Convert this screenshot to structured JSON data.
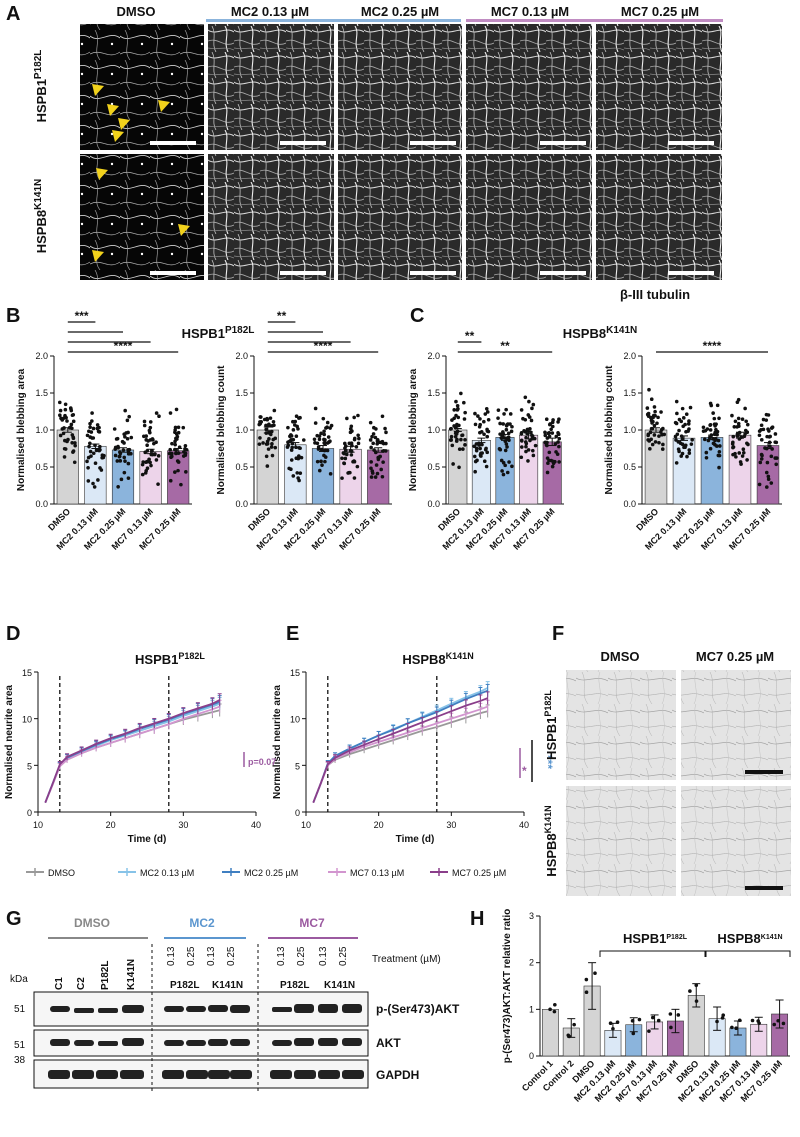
{
  "panel_letters": {
    "A": "A",
    "B": "B",
    "C": "C",
    "D": "D",
    "E": "E",
    "F": "F",
    "G": "G",
    "H": "H"
  },
  "colors": {
    "DMSO": "#d4d4d4",
    "MC2_013": "#dbe8f6",
    "MC2_025": "#8bb4dc",
    "MC7_013": "#edd4ea",
    "MC7_025": "#a66aa5",
    "line_DMSO": "#999999",
    "line_MC2_013": "#87c3e8",
    "line_MC2_025": "#3f7fc1",
    "line_MC7_013": "#d295cf",
    "line_MC7_025": "#8a3e8a",
    "mc2_text": "#5b96cf",
    "mc7_text": "#9b5aa0"
  },
  "panelA": {
    "headers": [
      "DMSO",
      "MC2 0.13 µM",
      "MC2 0.25 µM",
      "MC7 0.13 µM",
      "MC7 0.25 µM"
    ],
    "rows": [
      "HSPB1",
      "HSPB8"
    ],
    "row_sup": [
      "P182L",
      "K141N"
    ],
    "stain": "β-III tubulin"
  },
  "panelB": {
    "title": "HSPB1",
    "title_sup": "P182L"
  },
  "panelC": {
    "title": "HSPB8",
    "title_sup": "K141N"
  },
  "bar_categories": [
    "DMSO",
    "MC2 0.13 µM",
    "MC2 0.25 µM",
    "MC7 0.13 µM",
    "MC7 0.25 µM"
  ],
  "panelD": {
    "title": "HSPB1",
    "title_sup": "P182L",
    "pval": "p=0.07"
  },
  "panelE": {
    "title": "HSPB8",
    "title_sup": "K141N",
    "sig1": "*",
    "sig2": "***"
  },
  "panelF": {
    "headers": [
      "DMSO",
      "MC7 0.25 µM"
    ],
    "rows": [
      "HSPB1",
      "HSPB8"
    ],
    "row_sup": [
      "P182L",
      "K141N"
    ]
  },
  "legend": [
    "DMSO",
    "MC2 0.13 µM",
    "MC2 0.25 µM",
    "MC7 0.13 µM",
    "MC7 0.25 µM"
  ],
  "panelG": {
    "groups": [
      "DMSO",
      "MC2",
      "MC7"
    ],
    "lanes_dmso": [
      "C1",
      "C2",
      "P182L",
      "K141N"
    ],
    "conc": [
      "0.13",
      "0.25",
      "0.13",
      "0.25"
    ],
    "mut": [
      "P182L",
      "K141N"
    ],
    "treatment": "Treatment (µM)",
    "kda": "kDa",
    "markers": [
      "51",
      "51",
      "38"
    ],
    "blots": [
      "p-(Ser473)AKT",
      "AKT",
      "GAPDH"
    ]
  },
  "panelH": {
    "groups": [
      "HSPB1",
      "HSPB8"
    ],
    "group_sup": [
      "P182L",
      "K141N"
    ]
  },
  "chart_data": [
    {
      "id": "B1",
      "type": "bar",
      "ylabel": "Normalised blebbing area",
      "ylim": [
        0,
        2.0
      ],
      "yticks": [
        "0.0",
        "0.5",
        "1.0",
        "1.5",
        "2.0"
      ],
      "categories": [
        "DMSO",
        "MC2 0.13 µM",
        "MC2 0.25 µM",
        "MC7 0.13 µM",
        "MC7 0.25 µM"
      ],
      "values": [
        1.0,
        0.78,
        0.73,
        0.71,
        0.72
      ],
      "errors": [
        0.03,
        0.03,
        0.03,
        0.03,
        0.03
      ],
      "sig": [
        {
          "to": 1,
          "label": "***"
        },
        {
          "to": 2,
          "label": ""
        },
        {
          "to": 3,
          "label": ""
        },
        {
          "to": 4,
          "label": "****"
        }
      ]
    },
    {
      "id": "B2",
      "type": "bar",
      "ylabel": "Normalised blebbing count",
      "ylim": [
        0,
        2.0
      ],
      "yticks": [
        "0.0",
        "0.5",
        "1.0",
        "1.5",
        "2.0"
      ],
      "categories": [
        "DMSO",
        "MC2 0.13 µM",
        "MC2 0.25 µM",
        "MC7 0.13 µM",
        "MC7 0.25 µM"
      ],
      "values": [
        1.0,
        0.8,
        0.75,
        0.74,
        0.73
      ],
      "errors": [
        0.04,
        0.03,
        0.04,
        0.04,
        0.03
      ],
      "sig": [
        {
          "to": 1,
          "label": "**"
        },
        {
          "to": 2,
          "label": ""
        },
        {
          "to": 3,
          "label": ""
        },
        {
          "to": 4,
          "label": "****"
        }
      ]
    },
    {
      "id": "C1",
      "type": "bar",
      "ylabel": "Normalised blebbing area",
      "ylim": [
        0,
        2.0
      ],
      "yticks": [
        "0.0",
        "0.5",
        "1.0",
        "1.5",
        "2.0"
      ],
      "categories": [
        "DMSO",
        "MC2 0.13 µM",
        "MC2 0.25 µM",
        "MC7 0.13 µM",
        "MC7 0.25 µM"
      ],
      "values": [
        1.0,
        0.86,
        0.9,
        0.93,
        0.84
      ],
      "errors": [
        0.02,
        0.03,
        0.04,
        0.05,
        0.05
      ],
      "sig": [
        {
          "to": 1,
          "label": "**"
        },
        {
          "to": 4,
          "label": "**"
        }
      ]
    },
    {
      "id": "C2",
      "type": "bar",
      "ylabel": "Normalised blebbing count",
      "ylim": [
        0,
        2.0
      ],
      "yticks": [
        "0.0",
        "0.5",
        "1.0",
        "1.5",
        "2.0"
      ],
      "categories": [
        "DMSO",
        "MC2 0.13 µM",
        "MC2 0.25 µM",
        "MC7 0.13 µM",
        "MC7 0.25 µM"
      ],
      "values": [
        1.0,
        0.89,
        0.9,
        0.93,
        0.79
      ],
      "errors": [
        0.03,
        0.03,
        0.03,
        0.04,
        0.04
      ],
      "sig": [
        {
          "to": 4,
          "label": "****"
        }
      ]
    },
    {
      "id": "D",
      "type": "line",
      "xlabel": "Time (d)",
      "ylabel": "Normalised neurite area",
      "xlim": [
        10,
        40
      ],
      "ylim": [
        0,
        15
      ],
      "xticks": [
        "10",
        "20",
        "30",
        "40"
      ],
      "yticks": [
        "0",
        "5",
        "10",
        "15"
      ],
      "vlines": [
        13,
        28
      ],
      "x": [
        11,
        12,
        13,
        14,
        16,
        18,
        20,
        22,
        24,
        26,
        28,
        30,
        32,
        34,
        35
      ],
      "series": [
        {
          "name": "DMSO",
          "values": [
            1.0,
            2.9,
            4.9,
            5.6,
            6.3,
            6.9,
            7.4,
            7.9,
            8.4,
            8.9,
            9.4,
            9.9,
            10.3,
            10.7,
            10.9
          ]
        },
        {
          "name": "MC2 0.13 µM",
          "values": [
            1.0,
            3.0,
            5.0,
            5.8,
            6.5,
            7.1,
            7.7,
            8.2,
            8.7,
            9.2,
            9.7,
            10.3,
            10.8,
            11.3,
            11.6
          ]
        },
        {
          "name": "MC2 0.25 µM",
          "values": [
            1.0,
            3.0,
            5.0,
            5.8,
            6.5,
            7.2,
            7.8,
            8.3,
            8.9,
            9.4,
            9.9,
            10.5,
            11.0,
            11.5,
            11.8
          ]
        },
        {
          "name": "MC7 0.13 µM",
          "values": [
            1.0,
            2.9,
            4.9,
            5.6,
            6.3,
            6.9,
            7.4,
            7.9,
            8.4,
            8.9,
            9.4,
            10.0,
            10.5,
            11.0,
            11.3
          ]
        },
        {
          "name": "MC7 0.25 µM",
          "values": [
            1.0,
            3.0,
            5.1,
            5.9,
            6.6,
            7.3,
            7.9,
            8.4,
            9.0,
            9.5,
            10.0,
            10.6,
            11.1,
            11.6,
            12.0
          ]
        }
      ]
    },
    {
      "id": "E",
      "type": "line",
      "xlabel": "Time (d)",
      "ylabel": "Normalised neurite area",
      "xlim": [
        10,
        40
      ],
      "ylim": [
        0,
        15
      ],
      "xticks": [
        "10",
        "20",
        "30",
        "40"
      ],
      "yticks": [
        "0",
        "5",
        "10",
        "15"
      ],
      "vlines": [
        13,
        28
      ],
      "x": [
        11,
        12,
        13,
        14,
        16,
        18,
        20,
        22,
        24,
        26,
        28,
        30,
        32,
        34,
        35
      ],
      "series": [
        {
          "name": "DMSO",
          "values": [
            1.0,
            3.0,
            5.0,
            5.6,
            6.2,
            6.7,
            7.2,
            7.7,
            8.2,
            8.7,
            9.1,
            9.6,
            10.1,
            10.6,
            10.8
          ]
        },
        {
          "name": "MC2 0.13 µM",
          "values": [
            1.0,
            3.0,
            5.2,
            6.0,
            6.8,
            7.5,
            8.2,
            8.9,
            9.5,
            10.2,
            10.9,
            11.6,
            12.3,
            12.9,
            13.3
          ]
        },
        {
          "name": "MC2 0.25 µM",
          "values": [
            1.0,
            3.0,
            5.2,
            6.0,
            6.8,
            7.5,
            8.2,
            8.8,
            9.5,
            10.1,
            10.7,
            11.4,
            12.1,
            12.7,
            13.0
          ]
        },
        {
          "name": "MC7 0.13 µM",
          "values": [
            1.0,
            3.0,
            5.0,
            5.7,
            6.4,
            7.0,
            7.5,
            8.0,
            8.5,
            9.0,
            9.5,
            10.0,
            10.5,
            11.0,
            11.3
          ]
        },
        {
          "name": "MC7 0.25 µM",
          "values": [
            1.0,
            3.0,
            5.1,
            5.8,
            6.6,
            7.2,
            7.8,
            8.4,
            9.0,
            9.6,
            10.2,
            10.8,
            11.4,
            11.9,
            12.2
          ]
        }
      ]
    },
    {
      "id": "H",
      "type": "bar",
      "ylabel": "p-(Ser473)AKT:AKT relative ratio",
      "ylim": [
        0,
        3
      ],
      "yticks": [
        "0",
        "1",
        "2",
        "3"
      ],
      "categories": [
        "Control 1",
        "Control 2",
        "DMSO",
        "MC2 0.13 µM",
        "MC2 0.25 µM",
        "MC7 0.13 µM",
        "MC7 0.25 µM",
        "DMSO",
        "MC2 0.13 µM",
        "MC2 0.25 µM",
        "MC7 0.13 µM",
        "MC7 0.25 µM"
      ],
      "values": [
        1.0,
        0.6,
        1.5,
        0.55,
        0.67,
        0.73,
        0.75,
        1.3,
        0.8,
        0.6,
        0.68,
        0.9
      ],
      "errors": [
        0.0,
        0.2,
        0.5,
        0.15,
        0.15,
        0.15,
        0.25,
        0.25,
        0.25,
        0.15,
        0.15,
        0.3
      ]
    }
  ]
}
